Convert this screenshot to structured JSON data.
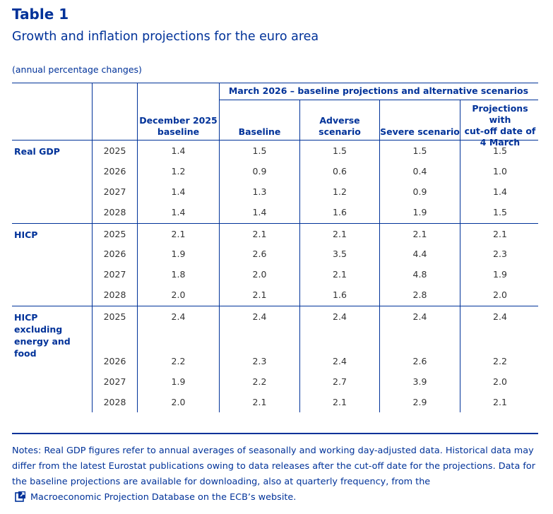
{
  "title": "Table 1",
  "subtitle": "Growth and inflation projections for the euro area",
  "units": "(annual percentage changes)",
  "header": {
    "group_label": "March 2026 – baseline projections and alternative scenarios",
    "columns": [
      "December 2025\nbaseline",
      "Baseline",
      "Adverse\nscenario",
      "Severe scenario",
      "Projections with\ncut-off date of\n4 March"
    ]
  },
  "groups": [
    {
      "label": "Real GDP",
      "rows": [
        {
          "year": "2025",
          "values": [
            "1.4",
            "1.5",
            "1.5",
            "1.5",
            "1.5"
          ]
        },
        {
          "year": "2026",
          "values": [
            "1.2",
            "0.9",
            "0.6",
            "0.4",
            "1.0"
          ]
        },
        {
          "year": "2027",
          "values": [
            "1.4",
            "1.3",
            "1.2",
            "0.9",
            "1.4"
          ]
        },
        {
          "year": "2028",
          "values": [
            "1.4",
            "1.4",
            "1.6",
            "1.9",
            "1.5"
          ]
        }
      ]
    },
    {
      "label": "HICP",
      "rows": [
        {
          "year": "2025",
          "values": [
            "2.1",
            "2.1",
            "2.1",
            "2.1",
            "2.1"
          ]
        },
        {
          "year": "2026",
          "values": [
            "1.9",
            "2.6",
            "3.5",
            "4.4",
            "2.3"
          ]
        },
        {
          "year": "2027",
          "values": [
            "1.8",
            "2.0",
            "2.1",
            "4.8",
            "1.9"
          ]
        },
        {
          "year": "2028",
          "values": [
            "2.0",
            "2.1",
            "1.6",
            "2.8",
            "2.0"
          ]
        }
      ]
    },
    {
      "label": "HICP excluding\nenergy and\nfood",
      "rows": [
        {
          "year": "2025",
          "values": [
            "2.4",
            "2.4",
            "2.4",
            "2.4",
            "2.4"
          ]
        },
        {
          "year": "2026",
          "values": [
            "2.2",
            "2.3",
            "2.4",
            "2.6",
            "2.2"
          ]
        },
        {
          "year": "2027",
          "values": [
            "1.9",
            "2.2",
            "2.7",
            "3.9",
            "2.0"
          ]
        },
        {
          "year": "2028",
          "values": [
            "2.0",
            "2.1",
            "2.1",
            "2.9",
            "2.1"
          ]
        }
      ]
    }
  ],
  "notes": {
    "text": "Notes: Real GDP figures refer to annual averages of seasonally and working day-adjusted data. Historical data may differ from the latest Eurostat publications owing to data releases after the cut-off date for the projections. Data for the baseline projections are available for downloading, also at quarterly frequency, from the",
    "link_text": "Macroeconomic Projection Database on the ECB’s website",
    "link_suffix": ".",
    "link_icon": "external-link-icon"
  }
}
